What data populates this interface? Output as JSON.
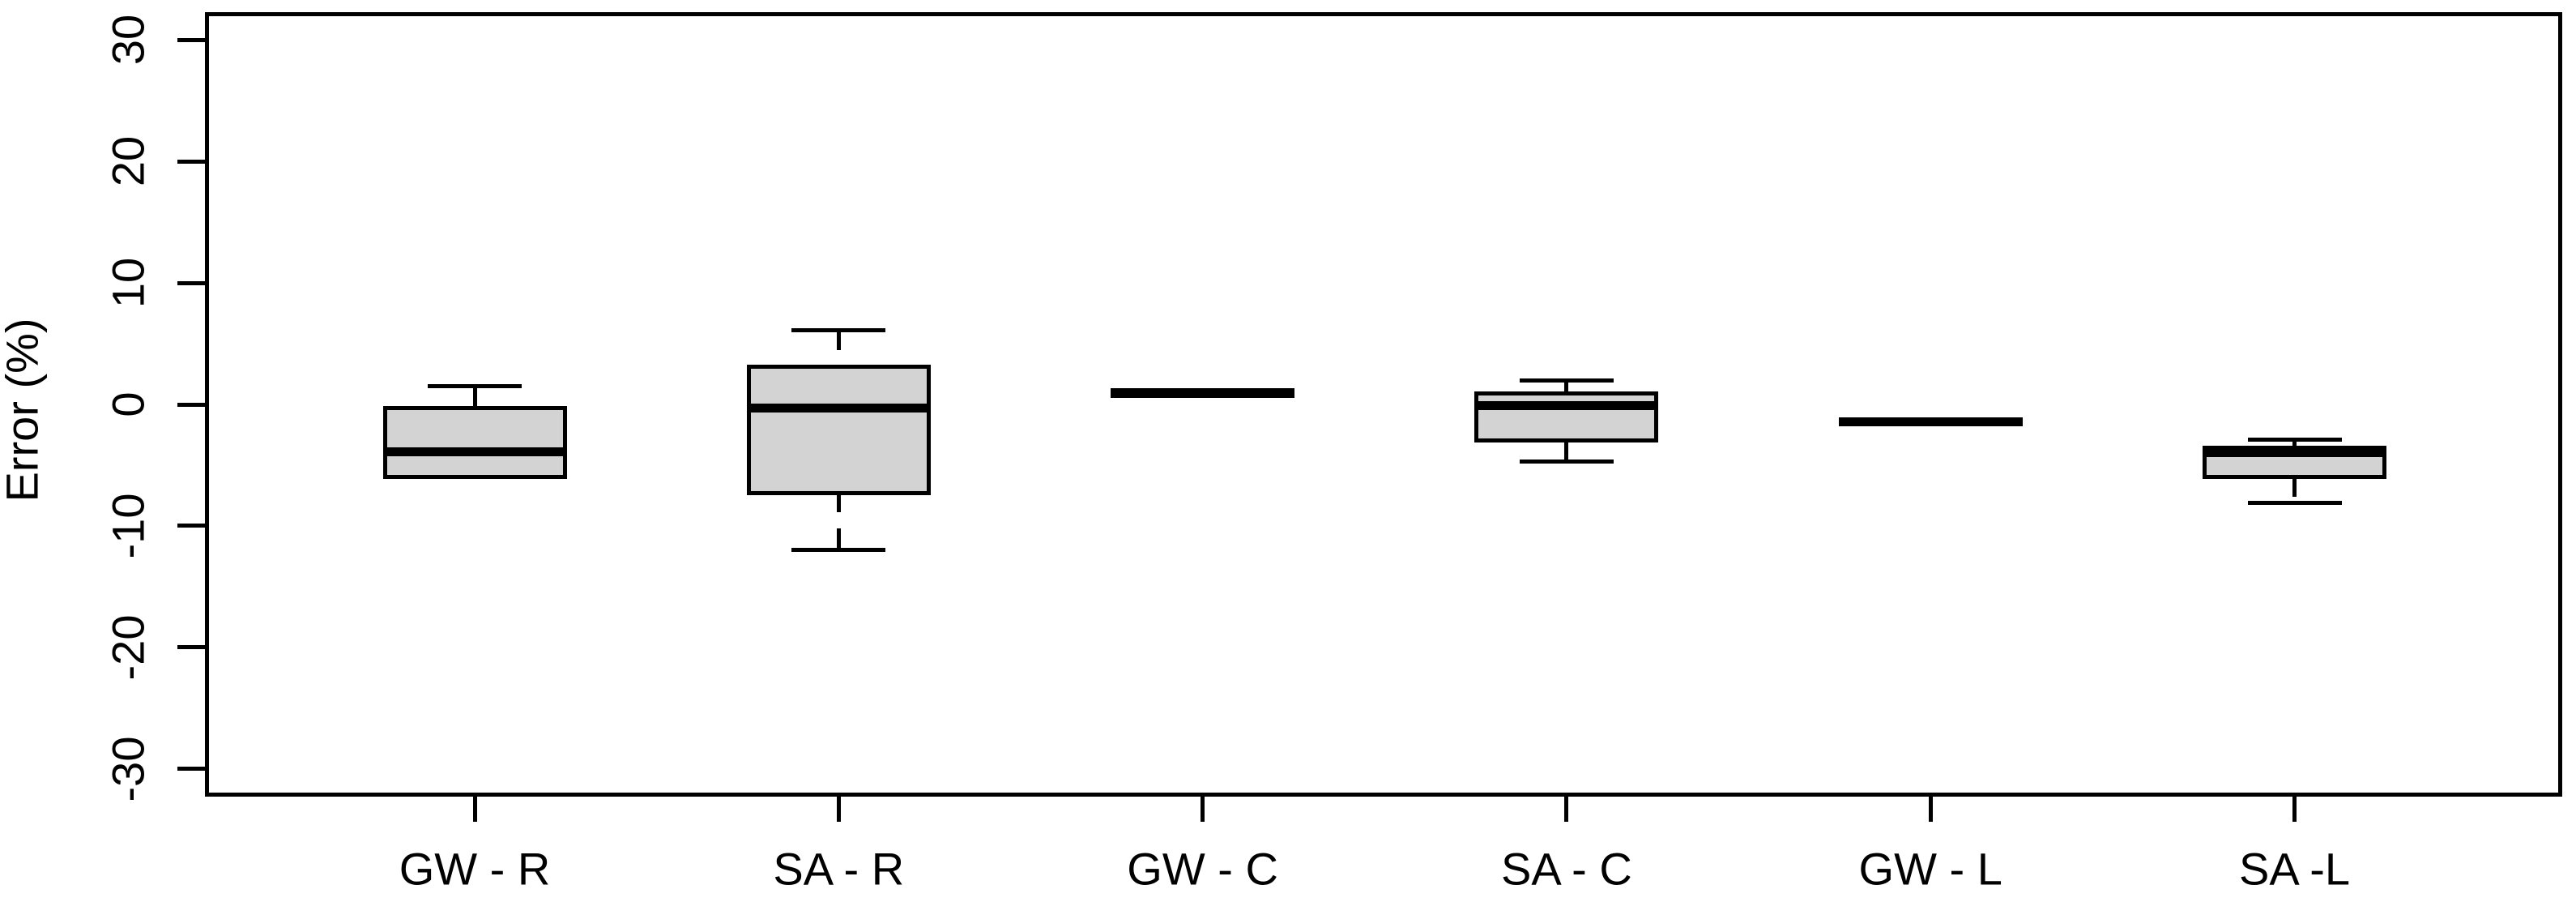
{
  "figure": {
    "background_color": "#ffffff",
    "frame_color": "#000000",
    "box_fill_color": "#d3d3d3",
    "line_color": "#000000"
  },
  "chart_data": {
    "type": "boxplot",
    "title": "",
    "xlabel": "",
    "ylabel": "Error (%)",
    "ylim": [
      -32.3,
      32.3
    ],
    "yticks": [
      30,
      20,
      10,
      0,
      -10,
      -20,
      -30
    ],
    "grid": "off",
    "legend": "none",
    "categories": [
      "GW - R",
      "SA - R",
      "GW - C",
      "SA - C",
      "GW - L",
      "SA -L"
    ],
    "series": [
      {
        "name": "GW - R",
        "min": -6.0,
        "q1": -6.0,
        "median": -3.9,
        "q3": -0.3,
        "max": 1.5
      },
      {
        "name": "SA - R",
        "min": -12.0,
        "q1": -7.3,
        "median": -0.3,
        "q3": 3.1,
        "max": 6.1
      },
      {
        "name": "GW - C",
        "min": 0.5,
        "q1": 0.7,
        "median": 0.95,
        "q3": 1.2,
        "max": 1.35
      },
      {
        "name": "SA - C",
        "min": -4.7,
        "q1": -3.0,
        "median": -0.1,
        "q3": 0.9,
        "max": 2.0
      },
      {
        "name": "GW - L",
        "min": -1.75,
        "q1": -1.65,
        "median": -1.45,
        "q3": -1.3,
        "max": -1.1
      },
      {
        "name": "SA -L",
        "min": -8.1,
        "q1": -6.0,
        "median": -4.0,
        "q3": -3.6,
        "max": -2.9
      }
    ]
  }
}
